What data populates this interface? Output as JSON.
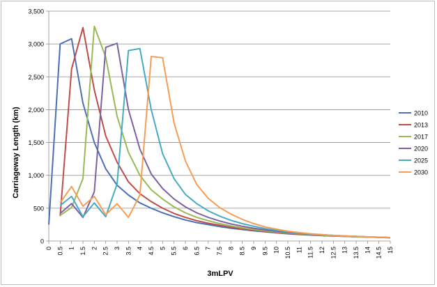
{
  "chart_data": {
    "type": "line",
    "xlabel": "3mLPV",
    "ylabel": "Carriageway Length (km)",
    "ylim": [
      0,
      3500
    ],
    "yticks": [
      0,
      500,
      1000,
      1500,
      2000,
      2500,
      3000,
      3500
    ],
    "ytick_labels": [
      "0",
      "500",
      "1,000",
      "1,500",
      "2,000",
      "2,500",
      "3,000",
      "3,500"
    ],
    "x": [
      0,
      0.5,
      1,
      1.5,
      2,
      2.5,
      3,
      3.5,
      4,
      4.5,
      5,
      5.5,
      6,
      6.5,
      7,
      7.5,
      8,
      8.5,
      9,
      9.5,
      10,
      10.5,
      11,
      11.5,
      12,
      12.5,
      13,
      13.5,
      14,
      14.5,
      15
    ],
    "xtick_labels": [
      "0",
      "0.5",
      "1",
      "1.5",
      "2",
      "2.5",
      "3",
      "3.5",
      "4",
      "4.5",
      "5",
      "5.5",
      "6",
      "6.5",
      "7",
      "7.5",
      "8",
      "8.5",
      "9",
      "9.5",
      "10",
      "10.5",
      "11",
      "11.5",
      "12",
      "12.5",
      "13",
      "13.5",
      "14",
      "14.5",
      "15"
    ],
    "grid": "horizontal",
    "legend_position": "right",
    "series": [
      {
        "name": "2010",
        "color": "#4a6fb5",
        "values": [
          250,
          3000,
          3080,
          2100,
          1500,
          1100,
          850,
          700,
          580,
          500,
          430,
          370,
          320,
          280,
          250,
          220,
          195,
          175,
          155,
          140,
          125,
          110,
          100,
          90,
          82,
          75,
          70,
          65,
          60,
          55,
          50
        ]
      },
      {
        "name": "2013",
        "color": "#be4b48",
        "values": [
          null,
          380,
          2620,
          3250,
          2300,
          1600,
          1200,
          900,
          720,
          600,
          500,
          420,
          360,
          310,
          270,
          240,
          210,
          185,
          165,
          145,
          130,
          115,
          105,
          95,
          85,
          78,
          72,
          66,
          60,
          55,
          50
        ]
      },
      {
        "name": "2017",
        "color": "#98b954",
        "values": [
          null,
          390,
          510,
          950,
          3270,
          2800,
          1900,
          1350,
          1000,
          780,
          640,
          520,
          430,
          360,
          310,
          265,
          230,
          200,
          175,
          155,
          138,
          122,
          110,
          98,
          88,
          80,
          73,
          67,
          61,
          56,
          50
        ]
      },
      {
        "name": "2020",
        "color": "#7d60a0",
        "values": [
          null,
          420,
          570,
          360,
          750,
          2950,
          3010,
          2000,
          1400,
          1020,
          800,
          640,
          520,
          430,
          360,
          305,
          260,
          225,
          195,
          170,
          150,
          132,
          118,
          105,
          94,
          85,
          77,
          70,
          63,
          57,
          52
        ]
      },
      {
        "name": "2025",
        "color": "#46aac5",
        "values": [
          null,
          540,
          680,
          370,
          580,
          370,
          870,
          2900,
          2930,
          2000,
          1330,
          950,
          710,
          570,
          460,
          380,
          315,
          265,
          225,
          190,
          163,
          140,
          122,
          108,
          96,
          86,
          78,
          71,
          64,
          58,
          53
        ]
      },
      {
        "name": "2030",
        "color": "#f59d56",
        "values": [
          null,
          580,
          830,
          530,
          680,
          400,
          570,
          360,
          700,
          2810,
          2790,
          1800,
          1220,
          860,
          650,
          510,
          410,
          330,
          265,
          215,
          180,
          150,
          128,
          110,
          96,
          85,
          77,
          70,
          64,
          58,
          53
        ]
      }
    ]
  }
}
